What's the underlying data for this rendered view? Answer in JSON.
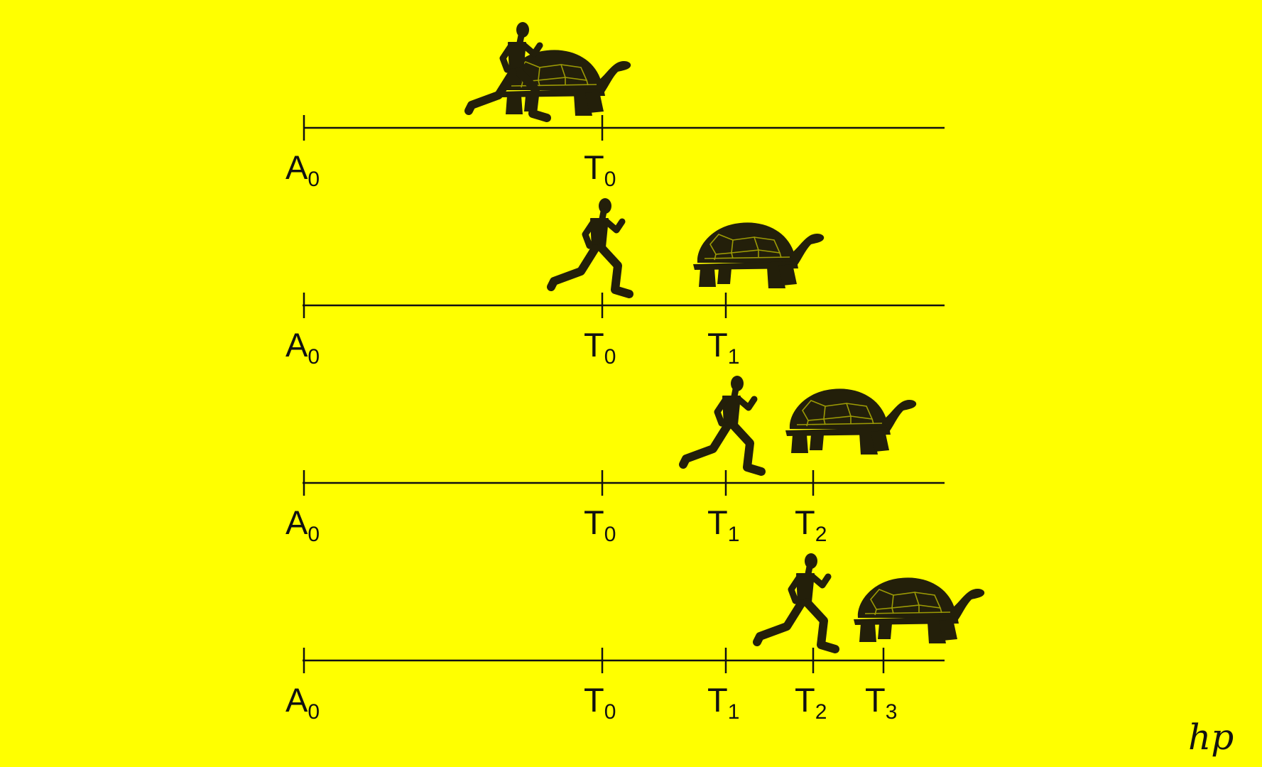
{
  "diagram": {
    "rows": [
      {
        "ticks": [
          {
            "letter": "A",
            "sub": "0"
          },
          {
            "letter": "T",
            "sub": "0"
          }
        ]
      },
      {
        "ticks": [
          {
            "letter": "A",
            "sub": "0"
          },
          {
            "letter": "T",
            "sub": "0"
          },
          {
            "letter": "T",
            "sub": "1"
          }
        ]
      },
      {
        "ticks": [
          {
            "letter": "A",
            "sub": "0"
          },
          {
            "letter": "T",
            "sub": "0"
          },
          {
            "letter": "T",
            "sub": "1"
          },
          {
            "letter": "T",
            "sub": "2"
          }
        ]
      },
      {
        "ticks": [
          {
            "letter": "A",
            "sub": "0"
          },
          {
            "letter": "T",
            "sub": "0"
          },
          {
            "letter": "T",
            "sub": "1"
          },
          {
            "letter": "T",
            "sub": "2"
          },
          {
            "letter": "T",
            "sub": "3"
          }
        ]
      }
    ],
    "signature": "hp",
    "colors": {
      "background": "#ffff00",
      "ink": "#111111",
      "silhouette": "#231f0a"
    },
    "icons": [
      "runner-icon",
      "tortoise-icon"
    ]
  }
}
